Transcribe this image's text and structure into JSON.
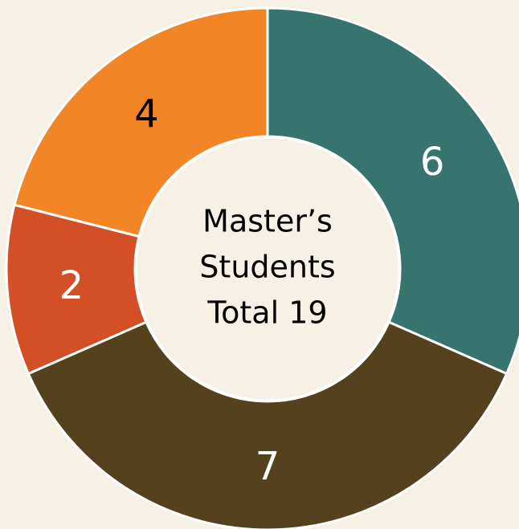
{
  "chart_data": {
    "type": "donut",
    "values": [
      6,
      7,
      2,
      4
    ],
    "colors": [
      "#37746d",
      "#56411e",
      "#d35026",
      "#f28627"
    ],
    "center_text": [
      "Master’s",
      "Students",
      "Total 19"
    ]
  }
}
